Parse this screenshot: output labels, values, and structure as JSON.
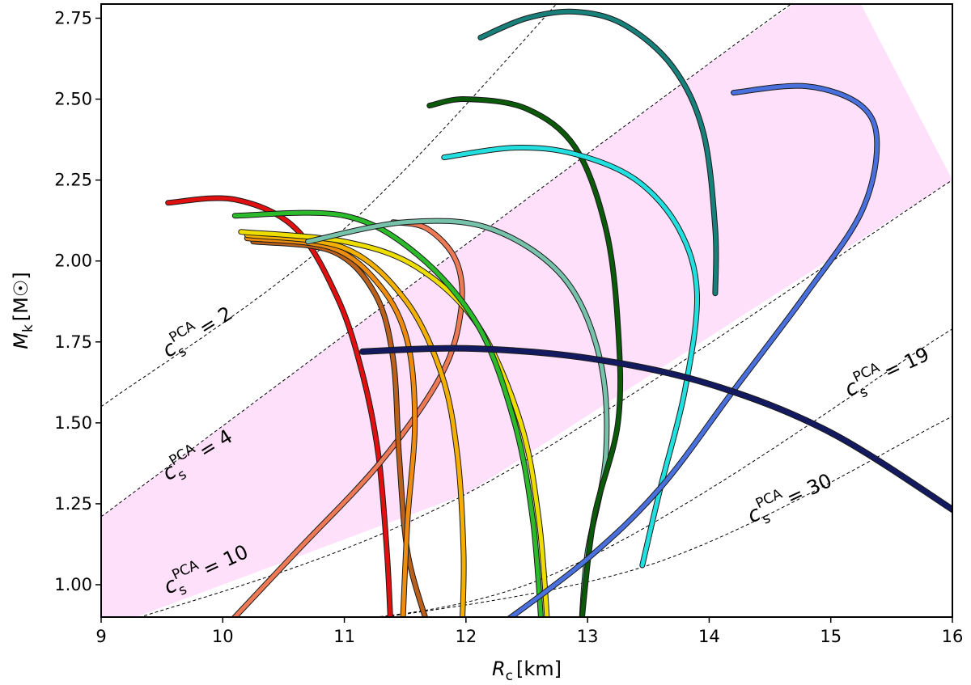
{
  "chart_data": {
    "type": "line",
    "title": "",
    "xlabel": "R_c [km]",
    "ylabel": "M_k [M☉]",
    "xlim": [
      9,
      16
    ],
    "ylim": [
      0.9,
      2.8
    ],
    "xticks": [
      "9",
      "10",
      "11",
      "12",
      "13",
      "14",
      "15",
      "16"
    ],
    "yticks": [
      "1.00",
      "1.25",
      "1.50",
      "1.75",
      "2.00",
      "2.25",
      "2.50",
      "2.75"
    ],
    "grid": false,
    "legend": "none",
    "shaded_band": {
      "color": "#ffe0fb",
      "lower": [
        [
          9.0,
          0.86
        ],
        [
          12.0,
          1.28
        ],
        [
          16.0,
          2.25
        ]
      ],
      "upper": [
        [
          9.0,
          1.21
        ],
        [
          14.0,
          2.61
        ],
        [
          15.1,
          2.9
        ]
      ]
    },
    "reference_lines": [
      {
        "label": "c_s^PCA = 2",
        "points": [
          [
            9.0,
            1.55
          ],
          [
            11.0,
            2.1
          ],
          [
            13.0,
            2.9
          ]
        ]
      },
      {
        "label": "c_s^PCA = 4",
        "points": [
          [
            9.0,
            1.21
          ],
          [
            14.0,
            2.61
          ],
          [
            15.1,
            2.9
          ]
        ]
      },
      {
        "label": "c_s^PCA = 10",
        "points": [
          [
            9.0,
            0.86
          ],
          [
            12.0,
            1.28
          ],
          [
            16.0,
            2.25
          ]
        ]
      },
      {
        "label": "c_s^PCA = 19",
        "points": [
          [
            9.2,
            0.86
          ],
          [
            12.5,
            1.0
          ],
          [
            16.0,
            1.79
          ]
        ]
      },
      {
        "label": "c_s^PCA = 30",
        "points": [
          [
            10.6,
            0.86
          ],
          [
            13.5,
            1.06
          ],
          [
            16.0,
            1.52
          ]
        ]
      }
    ],
    "annotations": [
      {
        "base": "c",
        "sub": "s",
        "sup": "PCA",
        "value": "= 2",
        "x": 9.55,
        "y": 1.7,
        "angle": -32
      },
      {
        "base": "c",
        "sub": "s",
        "sup": "PCA",
        "value": "= 4",
        "x": 9.55,
        "y": 1.32,
        "angle": -32
      },
      {
        "base": "c",
        "sub": "s",
        "sup": "PCA",
        "value": "= 10",
        "x": 9.55,
        "y": 0.97,
        "angle": -25
      },
      {
        "base": "c",
        "sub": "s",
        "sup": "PCA",
        "value": "= 19",
        "x": 15.15,
        "y": 1.58,
        "angle": -25
      },
      {
        "base": "c",
        "sub": "s",
        "sup": "PCA",
        "value": "= 30",
        "x": 14.35,
        "y": 1.19,
        "angle": -25
      }
    ],
    "series": [
      {
        "color": "#e01010",
        "width": 5,
        "points": [
          [
            11.38,
            0.88
          ],
          [
            11.35,
            1.1
          ],
          [
            11.28,
            1.4
          ],
          [
            11.15,
            1.65
          ],
          [
            10.95,
            1.88
          ],
          [
            10.6,
            2.1
          ],
          [
            10.1,
            2.19
          ],
          [
            9.55,
            2.18
          ]
        ]
      },
      {
        "color": "#ee7a55",
        "width": 5,
        "points": [
          [
            10.05,
            0.88
          ],
          [
            10.6,
            1.1
          ],
          [
            11.3,
            1.38
          ],
          [
            11.8,
            1.65
          ],
          [
            11.96,
            1.85
          ],
          [
            11.92,
            2.0
          ],
          [
            11.68,
            2.1
          ],
          [
            11.4,
            2.12
          ]
        ]
      },
      {
        "color": "#b8601c",
        "width": 5,
        "points": [
          [
            11.68,
            0.88
          ],
          [
            11.52,
            1.1
          ],
          [
            11.45,
            1.4
          ],
          [
            11.4,
            1.7
          ],
          [
            11.25,
            1.9
          ],
          [
            10.9,
            2.03
          ],
          [
            10.25,
            2.06
          ]
        ]
      },
      {
        "color": "#ee8c10",
        "width": 5,
        "points": [
          [
            11.48,
            0.88
          ],
          [
            11.52,
            1.2
          ],
          [
            11.58,
            1.5
          ],
          [
            11.52,
            1.75
          ],
          [
            11.3,
            1.92
          ],
          [
            10.9,
            2.04
          ],
          [
            10.2,
            2.07
          ]
        ]
      },
      {
        "color": "#f3b000",
        "width": 5,
        "points": [
          [
            11.97,
            0.88
          ],
          [
            11.98,
            1.1
          ],
          [
            11.93,
            1.4
          ],
          [
            11.8,
            1.65
          ],
          [
            11.5,
            1.88
          ],
          [
            11.0,
            2.04
          ],
          [
            10.2,
            2.08
          ]
        ]
      },
      {
        "color": "#eedd00",
        "width": 5,
        "points": [
          [
            12.67,
            0.88
          ],
          [
            12.6,
            1.2
          ],
          [
            12.45,
            1.5
          ],
          [
            12.1,
            1.8
          ],
          [
            11.6,
            1.98
          ],
          [
            11.0,
            2.06
          ],
          [
            10.15,
            2.09
          ]
        ]
      },
      {
        "color": "#2aba2a",
        "width": 5,
        "points": [
          [
            12.62,
            0.88
          ],
          [
            12.55,
            1.2
          ],
          [
            12.4,
            1.5
          ],
          [
            12.1,
            1.8
          ],
          [
            11.6,
            2.02
          ],
          [
            11.0,
            2.14
          ],
          [
            10.1,
            2.14
          ]
        ]
      },
      {
        "color": "#76c2aa",
        "width": 5,
        "points": [
          [
            12.95,
            0.88
          ],
          [
            13.0,
            1.1
          ],
          [
            13.15,
            1.4
          ],
          [
            13.1,
            1.7
          ],
          [
            12.8,
            1.95
          ],
          [
            12.2,
            2.1
          ],
          [
            11.5,
            2.12
          ],
          [
            10.7,
            2.06
          ]
        ]
      },
      {
        "color": "#0a5a0a",
        "width": 5,
        "points": [
          [
            12.95,
            0.88
          ],
          [
            13.05,
            1.2
          ],
          [
            13.25,
            1.5
          ],
          [
            13.25,
            1.8
          ],
          [
            13.15,
            2.1
          ],
          [
            12.9,
            2.35
          ],
          [
            12.5,
            2.47
          ],
          [
            12.0,
            2.5
          ],
          [
            11.7,
            2.48
          ]
        ]
      },
      {
        "color": "#22e0e0",
        "width": 5,
        "points": [
          [
            13.45,
            1.06
          ],
          [
            13.6,
            1.3
          ],
          [
            13.8,
            1.6
          ],
          [
            13.9,
            1.9
          ],
          [
            13.75,
            2.1
          ],
          [
            13.4,
            2.25
          ],
          [
            12.9,
            2.33
          ],
          [
            12.4,
            2.35
          ],
          [
            11.82,
            2.32
          ]
        ]
      },
      {
        "color": "#17807a",
        "width": 5,
        "points": [
          [
            14.05,
            1.9
          ],
          [
            14.05,
            2.1
          ],
          [
            13.95,
            2.4
          ],
          [
            13.7,
            2.6
          ],
          [
            13.3,
            2.73
          ],
          [
            12.9,
            2.77
          ],
          [
            12.5,
            2.75
          ],
          [
            12.12,
            2.69
          ]
        ]
      },
      {
        "color": "#4a70dd",
        "width": 5,
        "points": [
          [
            12.3,
            0.88
          ],
          [
            13.0,
            1.08
          ],
          [
            13.6,
            1.3
          ],
          [
            14.2,
            1.6
          ],
          [
            14.8,
            1.9
          ],
          [
            15.25,
            2.15
          ],
          [
            15.38,
            2.36
          ],
          [
            15.25,
            2.48
          ],
          [
            14.8,
            2.54
          ],
          [
            14.2,
            2.52
          ]
        ]
      },
      {
        "color": "#141a60",
        "width": 6,
        "points": [
          [
            11.15,
            1.72
          ],
          [
            12.0,
            1.73
          ],
          [
            13.0,
            1.7
          ],
          [
            14.0,
            1.62
          ],
          [
            15.0,
            1.47
          ],
          [
            16.05,
            1.22
          ]
        ]
      }
    ]
  }
}
